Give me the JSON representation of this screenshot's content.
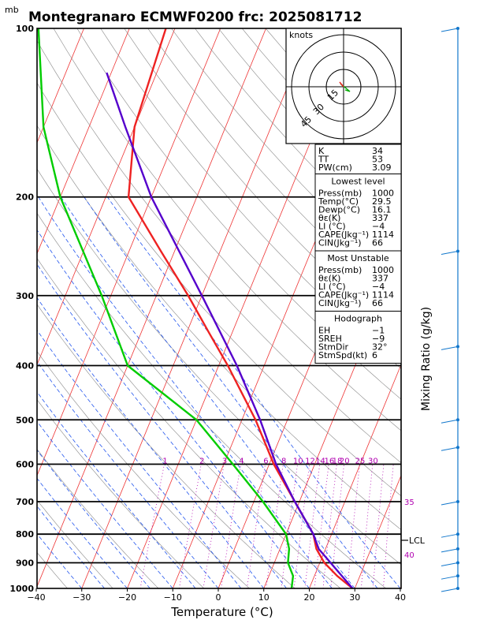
{
  "header": {
    "unit_top": "mb",
    "title": "Montegranaro ECMWF0200 frc: 2025081712"
  },
  "chart_data": {
    "type": "line",
    "title": "Montegranaro ECMWF0200 frc: 2025081712",
    "xlabel": "Temperature (°C)",
    "ylabel": "mb",
    "xlim": [
      -40,
      40
    ],
    "ylim": [
      1000,
      100
    ],
    "y_scale": "log",
    "skew": true,
    "x_ticks": [
      -40,
      -30,
      -20,
      -10,
      0,
      10,
      20,
      30,
      40
    ],
    "y_ticks": [
      100,
      200,
      300,
      400,
      500,
      600,
      700,
      800,
      900,
      1000
    ],
    "series": [
      {
        "color": "#ee2222",
        "points": [
          [
            1000,
            29.5
          ],
          [
            950,
            25
          ],
          [
            900,
            21
          ],
          [
            850,
            18
          ],
          [
            800,
            16
          ],
          [
            700,
            9
          ],
          [
            600,
            1
          ],
          [
            500,
            -7
          ],
          [
            400,
            -18
          ],
          [
            350,
            -25
          ],
          [
            300,
            -33
          ],
          [
            250,
            -43
          ],
          [
            200,
            -55
          ],
          [
            150,
            -60
          ],
          [
            100,
            -62
          ]
        ]
      },
      {
        "color": "#00cc00",
        "points": [
          [
            1000,
            16.1
          ],
          [
            950,
            15.3
          ],
          [
            900,
            13
          ],
          [
            850,
            12
          ],
          [
            800,
            10
          ],
          [
            700,
            2
          ],
          [
            600,
            -8
          ],
          [
            500,
            -20
          ],
          [
            400,
            -40
          ],
          [
            300,
            -52
          ],
          [
            200,
            -70
          ],
          [
            150,
            -80
          ],
          [
            100,
            -90
          ]
        ]
      },
      {
        "color": "#5500cc",
        "points": [
          [
            1000,
            29.5
          ],
          [
            850,
            18.5
          ],
          [
            800,
            16
          ],
          [
            700,
            9
          ],
          [
            600,
            1.5
          ],
          [
            500,
            -6
          ],
          [
            400,
            -16
          ],
          [
            300,
            -30
          ],
          [
            200,
            -50
          ],
          [
            150,
            -62
          ],
          [
            120,
            -71
          ]
        ]
      }
    ],
    "mixing_ratio_labels": [
      "1",
      "2",
      "3",
      "4",
      "6",
      "8",
      "10",
      "12",
      "14",
      "16",
      "18",
      "20",
      "25",
      "30"
    ],
    "mixing_ratio_right_labels": [
      "35",
      "40"
    ],
    "lcl_label": "LCL",
    "right_axis_label": "Mixing Ratio (g/kg)"
  },
  "hodograph": {
    "unit": "knots",
    "ring_labels": [
      "15",
      "30",
      "45"
    ]
  },
  "indices": {
    "rows": [
      {
        "k": "K",
        "v": "34"
      },
      {
        "k": "TT",
        "v": "53"
      },
      {
        "k": "PW(cm)",
        "v": "3.09"
      }
    ]
  },
  "lowest_level": {
    "heading": "Lowest level",
    "rows": [
      {
        "k": "Press(mb)",
        "v": "1000"
      },
      {
        "k": "Temp(°C)",
        "v": "29.5"
      },
      {
        "k": "Dewp(°C)",
        "v": "16.1"
      },
      {
        "k": "θε(K)",
        "v": "337"
      },
      {
        "k": "LI (°C)",
        "v": "−4"
      },
      {
        "k": "CAPE(Jkg⁻¹)",
        "v": "1114"
      },
      {
        "k": "CIN(Jkg⁻¹)",
        "v": "66"
      }
    ]
  },
  "most_unstable": {
    "heading": "Most Unstable",
    "rows": [
      {
        "k": "Press(mb)",
        "v": "1000"
      },
      {
        "k": "θε(K)",
        "v": "337"
      },
      {
        "k": "LI (°C)",
        "v": "−4"
      },
      {
        "k": "CAPE(Jkg⁻¹)",
        "v": "1114"
      },
      {
        "k": "CIN(Jkg⁻¹)",
        "v": "66"
      }
    ]
  },
  "hodograph_params": {
    "heading": "Hodograph",
    "rows": [
      {
        "k": "EH",
        "v": "−1"
      },
      {
        "k": "SREH",
        "v": "−9"
      },
      {
        "k": "StmDir",
        "v": "32°"
      },
      {
        "k": "StmSpd(kt)",
        "v": "6"
      }
    ]
  },
  "colors": {
    "temperature": "#ee2222",
    "dewpoint": "#00cc00",
    "parcel": "#5500cc",
    "isotherm": "#ee3333",
    "dry_adiabat": "#888888",
    "moist_adiabat": "#2255ee",
    "mixing_ratio": "#b000b0",
    "wind": "#1177cc"
  }
}
